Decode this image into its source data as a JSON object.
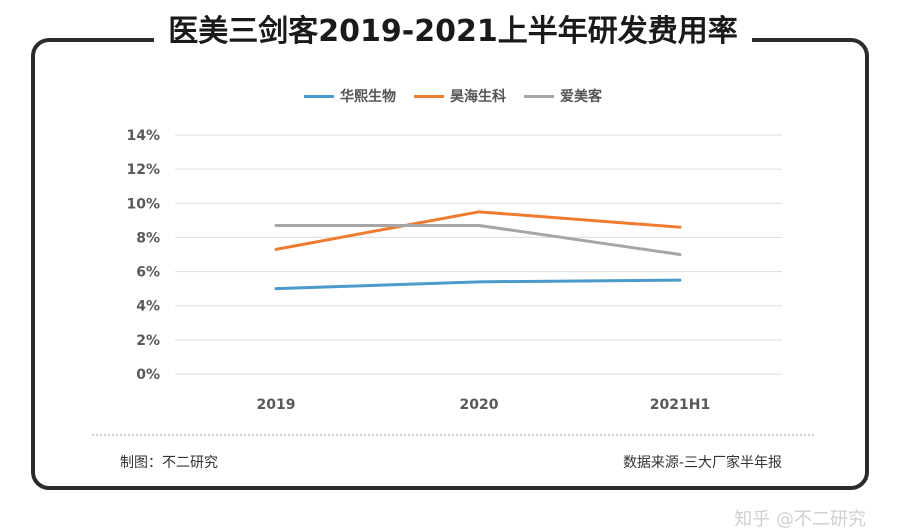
{
  "chart_data": {
    "type": "line",
    "title": "医美三剑客2019-2021上半年研发费用率",
    "categories": [
      "2019",
      "2020",
      "2021H1"
    ],
    "series": [
      {
        "name": "华熙生物",
        "color": "#4a9acb",
        "values": [
          5.0,
          5.4,
          5.5
        ]
      },
      {
        "name": "昊海生科",
        "color": "#ef7b2e",
        "values": [
          7.3,
          9.5,
          8.6
        ]
      },
      {
        "name": "爱美客",
        "color": "#a6a6a6",
        "values": [
          8.7,
          8.7,
          7.0
        ]
      }
    ],
    "yticks": [
      "0%",
      "2%",
      "4%",
      "6%",
      "8%",
      "10%",
      "12%",
      "14%"
    ],
    "ylim": [
      0,
      14
    ],
    "ylabel": "",
    "xlabel": "",
    "grid": true,
    "legend_position": "top"
  },
  "footer": {
    "credit": "制图：不二研究",
    "source": "数据来源-三大厂家半年报"
  },
  "watermark": "知乎 @不二研究"
}
